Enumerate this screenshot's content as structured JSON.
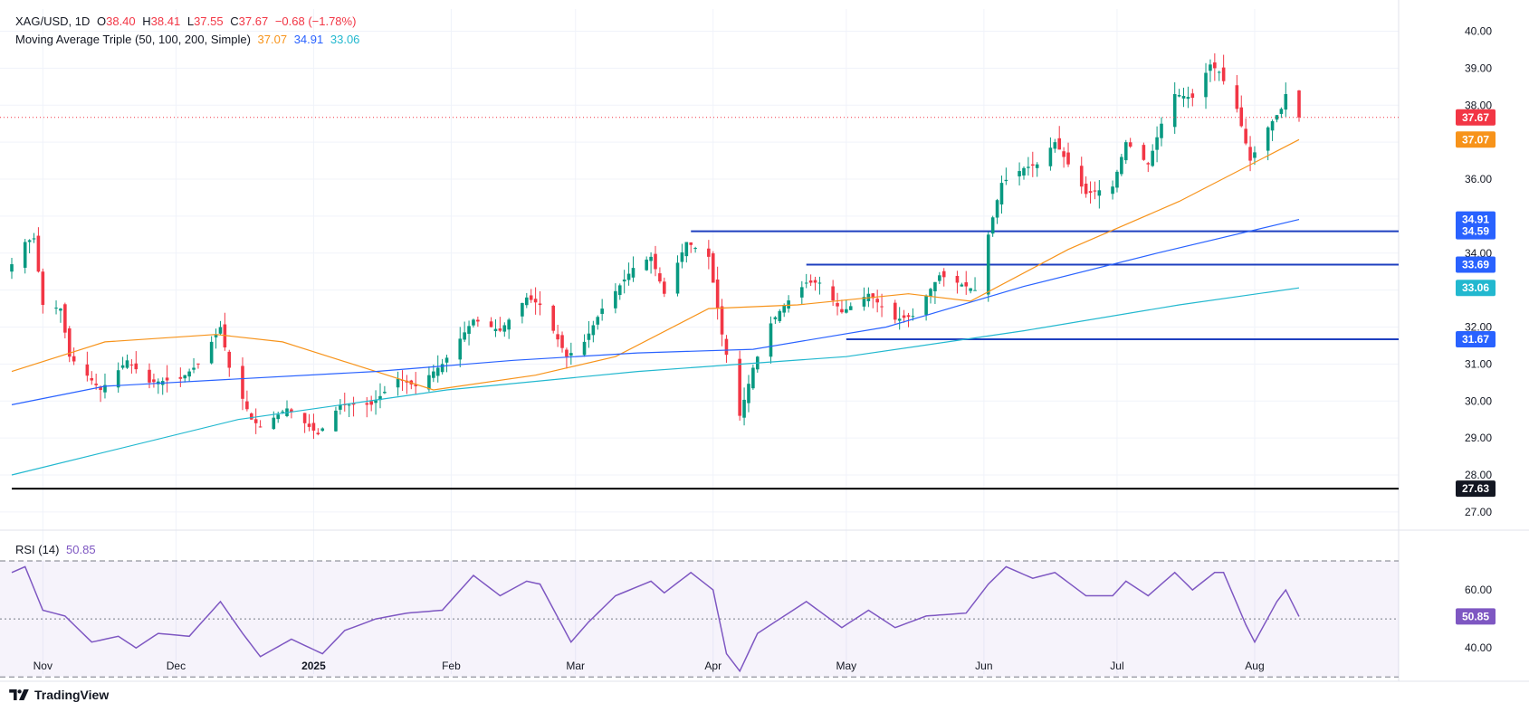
{
  "header": {
    "symbol": "XAG/USD, 1D",
    "open_label": "O",
    "open": "38.40",
    "high_label": "H",
    "high": "38.41",
    "low_label": "L",
    "low": "37.55",
    "close_label": "C",
    "close": "37.67",
    "change": "−0.68 (−1.78%)",
    "ma_title": "Moving Average Triple (50, 100, 200, Simple)",
    "ma50_value": "37.07",
    "ma100_value": "34.91",
    "ma200_value": "33.06",
    "rsi_title": "RSI (14)",
    "rsi_value": "50.85"
  },
  "brand": "TradingView",
  "colors": {
    "bull": "#089981",
    "bear": "#f23645",
    "ma50": "#f7931a",
    "ma100": "#2962ff",
    "ma200": "#22b8cf",
    "rsi": "#7e57c2",
    "level": "#1e3fbf",
    "support": "#000000"
  },
  "chart_data": [
    {
      "type": "candlestick",
      "title": "XAG/USD, 1D",
      "x_axis_labels": [
        "Nov",
        "Dec",
        "2025",
        "Feb",
        "Mar",
        "Apr",
        "May",
        "Jun",
        "Jul",
        "Aug"
      ],
      "y_ticks": [
        27,
        28,
        29,
        30,
        31,
        32,
        33,
        34,
        35,
        36,
        37,
        38,
        39,
        40
      ],
      "ylim": [
        26.9,
        40.6
      ],
      "date_range": [
        "2024-10-25",
        "2025-08-11"
      ],
      "anchors": [
        [
          "2024-10-25",
          33.7
        ],
        [
          "2024-10-28",
          34.3
        ],
        [
          "2024-10-30",
          34.4
        ],
        [
          "2024-11-01",
          32.6
        ],
        [
          "2024-11-05",
          32.5
        ],
        [
          "2024-11-07",
          31.2
        ],
        [
          "2024-11-14",
          30.3
        ],
        [
          "2024-11-20",
          31.1
        ],
        [
          "2024-11-25",
          30.5
        ],
        [
          "2024-12-02",
          30.6
        ],
        [
          "2024-12-06",
          31.0
        ],
        [
          "2024-12-11",
          32.0
        ],
        [
          "2024-12-13",
          30.9
        ],
        [
          "2024-12-18",
          29.5
        ],
        [
          "2024-12-20",
          29.3
        ],
        [
          "2024-12-26",
          29.8
        ],
        [
          "2025-01-02",
          29.1
        ],
        [
          "2025-01-07",
          29.9
        ],
        [
          "2025-01-14",
          29.9
        ],
        [
          "2025-01-20",
          30.6
        ],
        [
          "2025-01-24",
          30.4
        ],
        [
          "2025-01-30",
          31.0
        ],
        [
          "2025-02-06",
          32.2
        ],
        [
          "2025-02-12",
          31.9
        ],
        [
          "2025-02-18",
          32.8
        ],
        [
          "2025-02-21",
          32.6
        ],
        [
          "2025-02-27",
          31.2
        ],
        [
          "2025-03-03",
          31.6
        ],
        [
          "2025-03-07",
          32.5
        ],
        [
          "2025-03-14",
          33.6
        ],
        [
          "2025-03-18",
          33.9
        ],
        [
          "2025-03-21",
          32.9
        ],
        [
          "2025-03-26",
          34.3
        ],
        [
          "2025-03-31",
          33.9
        ],
        [
          "2025-04-03",
          31.8
        ],
        [
          "2025-04-07",
          29.6
        ],
        [
          "2025-04-10",
          30.9
        ],
        [
          "2025-04-14",
          32.1
        ],
        [
          "2025-04-17",
          32.6
        ],
        [
          "2025-04-22",
          33.2
        ],
        [
          "2025-04-25",
          33.2
        ],
        [
          "2025-04-30",
          32.4
        ],
        [
          "2025-05-06",
          32.9
        ],
        [
          "2025-05-12",
          32.2
        ],
        [
          "2025-05-16",
          32.3
        ],
        [
          "2025-05-22",
          33.4
        ],
        [
          "2025-05-28",
          33.1
        ],
        [
          "2025-05-30",
          33.0
        ],
        [
          "2025-06-02",
          34.5
        ],
        [
          "2025-06-05",
          35.9
        ],
        [
          "2025-06-10",
          36.3
        ],
        [
          "2025-06-13",
          36.4
        ],
        [
          "2025-06-17",
          37.0
        ],
        [
          "2025-06-24",
          35.6
        ],
        [
          "2025-06-30",
          35.8
        ],
        [
          "2025-07-03",
          37.0
        ],
        [
          "2025-07-08",
          36.4
        ],
        [
          "2025-07-11",
          37.5
        ],
        [
          "2025-07-14",
          38.3
        ],
        [
          "2025-07-18",
          38.2
        ],
        [
          "2025-07-22",
          39.1
        ],
        [
          "2025-07-24",
          38.9
        ],
        [
          "2025-07-28",
          37.9
        ],
        [
          "2025-07-31",
          36.5
        ],
        [
          "2025-08-04",
          37.4
        ],
        [
          "2025-08-07",
          37.9
        ],
        [
          "2025-08-08",
          38.3
        ],
        [
          "2025-08-11",
          37.67
        ]
      ],
      "last_candle": {
        "open": 38.4,
        "high": 38.41,
        "low": 37.55,
        "close": 37.67
      },
      "overlays": [
        {
          "name": "MA 50",
          "value": 37.07,
          "points": [
            [
              "2024-10-25",
              30.8
            ],
            [
              "2024-11-15",
              31.6
            ],
            [
              "2024-12-10",
              31.8
            ],
            [
              "2024-12-25",
              31.6
            ],
            [
              "2025-01-15",
              30.8
            ],
            [
              "2025-01-28",
              30.3
            ],
            [
              "2025-02-20",
              30.7
            ],
            [
              "2025-03-10",
              31.2
            ],
            [
              "2025-03-31",
              32.5
            ],
            [
              "2025-04-20",
              32.6
            ],
            [
              "2025-05-15",
              32.9
            ],
            [
              "2025-05-29",
              32.7
            ],
            [
              "2025-06-20",
              34.1
            ],
            [
              "2025-07-15",
              35.4
            ],
            [
              "2025-08-11",
              37.07
            ]
          ]
        },
        {
          "name": "MA 100",
          "value": 34.91,
          "points": [
            [
              "2024-10-25",
              29.9
            ],
            [
              "2024-11-15",
              30.4
            ],
            [
              "2024-12-15",
              30.6
            ],
            [
              "2025-01-15",
              30.8
            ],
            [
              "2025-02-15",
              31.1
            ],
            [
              "2025-03-15",
              31.3
            ],
            [
              "2025-04-10",
              31.4
            ],
            [
              "2025-05-10",
              32.0
            ],
            [
              "2025-06-10",
              33.1
            ],
            [
              "2025-07-10",
              34.0
            ],
            [
              "2025-08-11",
              34.91
            ]
          ]
        },
        {
          "name": "MA 200",
          "value": 33.06,
          "points": [
            [
              "2024-10-25",
              28.0
            ],
            [
              "2024-12-15",
              29.5
            ],
            [
              "2025-01-31",
              30.3
            ],
            [
              "2025-03-15",
              30.8
            ],
            [
              "2025-05-01",
              31.2
            ],
            [
              "2025-06-10",
              31.9
            ],
            [
              "2025-07-15",
              32.6
            ],
            [
              "2025-08-11",
              33.06
            ]
          ]
        }
      ],
      "horizontal_levels": [
        {
          "value": 34.59,
          "from": "2025-03-27",
          "label": "34.59"
        },
        {
          "value": 33.69,
          "from": "2025-04-22",
          "label": "33.69"
        },
        {
          "value": 31.67,
          "from": "2025-05-01",
          "label": "31.67"
        },
        {
          "value": 27.63,
          "from": "2024-10-25",
          "label": "27.63"
        }
      ],
      "price_labels": [
        {
          "value": 34.91,
          "label": "34.91",
          "color": "#2962ff"
        },
        {
          "value": 37.67,
          "label": "37.67",
          "color": "#f23645"
        },
        {
          "value": 37.07,
          "label": "37.07",
          "color": "#f7931a"
        },
        {
          "value": 33.06,
          "label": "33.06",
          "color": "#22b8cf"
        }
      ]
    },
    {
      "type": "line",
      "title": "RSI (14)",
      "y_ticks": [
        40.0,
        60.0
      ],
      "ylim": [
        31,
        70
      ],
      "band": [
        30,
        70
      ],
      "midline": 50,
      "value": 50.85,
      "anchors": [
        [
          "2024-10-25",
          66
        ],
        [
          "2024-10-28",
          68
        ],
        [
          "2024-11-01",
          53
        ],
        [
          "2024-11-06",
          51
        ],
        [
          "2024-11-12",
          42
        ],
        [
          "2024-11-18",
          44
        ],
        [
          "2024-11-22",
          40
        ],
        [
          "2024-11-27",
          45
        ],
        [
          "2024-12-04",
          44
        ],
        [
          "2024-12-11",
          56
        ],
        [
          "2024-12-16",
          45
        ],
        [
          "2024-12-20",
          37
        ],
        [
          "2024-12-27",
          43
        ],
        [
          "2025-01-03",
          38
        ],
        [
          "2025-01-08",
          46
        ],
        [
          "2025-01-15",
          50
        ],
        [
          "2025-01-22",
          52
        ],
        [
          "2025-01-30",
          53
        ],
        [
          "2025-02-06",
          65
        ],
        [
          "2025-02-12",
          58
        ],
        [
          "2025-02-18",
          63
        ],
        [
          "2025-02-21",
          62
        ],
        [
          "2025-02-28",
          42
        ],
        [
          "2025-03-04",
          49
        ],
        [
          "2025-03-10",
          58
        ],
        [
          "2025-03-18",
          63
        ],
        [
          "2025-03-21",
          59
        ],
        [
          "2025-03-27",
          66
        ],
        [
          "2025-04-01",
          60
        ],
        [
          "2025-04-04",
          38
        ],
        [
          "2025-04-07",
          32
        ],
        [
          "2025-04-11",
          45
        ],
        [
          "2025-04-17",
          51
        ],
        [
          "2025-04-22",
          56
        ],
        [
          "2025-04-30",
          47
        ],
        [
          "2025-05-06",
          53
        ],
        [
          "2025-05-12",
          47
        ],
        [
          "2025-05-19",
          51
        ],
        [
          "2025-05-28",
          52
        ],
        [
          "2025-06-02",
          62
        ],
        [
          "2025-06-06",
          68
        ],
        [
          "2025-06-12",
          64
        ],
        [
          "2025-06-17",
          66
        ],
        [
          "2025-06-24",
          58
        ],
        [
          "2025-06-30",
          58
        ],
        [
          "2025-07-03",
          63
        ],
        [
          "2025-07-08",
          58
        ],
        [
          "2025-07-14",
          66
        ],
        [
          "2025-07-18",
          60
        ],
        [
          "2025-07-23",
          66
        ],
        [
          "2025-07-25",
          66
        ],
        [
          "2025-07-30",
          48
        ],
        [
          "2025-08-01",
          42
        ],
        [
          "2025-08-06",
          56
        ],
        [
          "2025-08-08",
          60
        ],
        [
          "2025-08-11",
          50.85
        ]
      ]
    }
  ]
}
